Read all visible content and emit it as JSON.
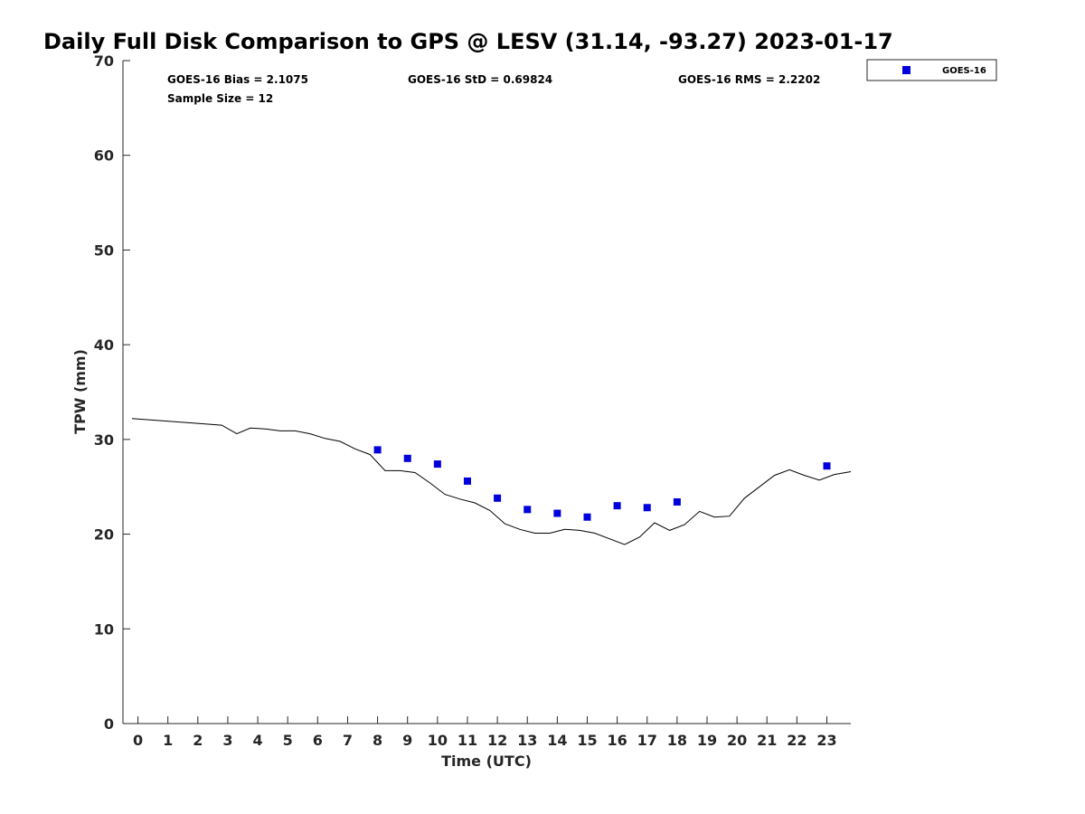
{
  "chart_data": {
    "type": "scatter",
    "title": "Daily Full Disk Comparison to GPS @ LESV (31.14, -93.27) 2023-01-17",
    "xlabel": "Time (UTC)",
    "ylabel": "TPW (mm)",
    "xlim": [
      -0.5,
      23.8
    ],
    "ylim": [
      0,
      70
    ],
    "x_ticks": [
      0,
      1,
      2,
      3,
      4,
      5,
      6,
      7,
      8,
      9,
      10,
      11,
      12,
      13,
      14,
      15,
      16,
      17,
      18,
      19,
      20,
      21,
      22,
      23
    ],
    "y_ticks": [
      0,
      10,
      20,
      30,
      40,
      50,
      60,
      70
    ],
    "grid": false,
    "legend_position": "top-right, outside plot",
    "annotations": {
      "bias": "GOES-16 Bias = 2.1075",
      "std": "GOES-16 StD = 0.69824",
      "rms": "GOES-16 RMS = 2.2202",
      "sample": "Sample Size = 12"
    },
    "series": [
      {
        "name": "GOES-16",
        "marker": "square",
        "color": "#0000dd",
        "points": [
          [
            8.0,
            28.9
          ],
          [
            9.0,
            28.0
          ],
          [
            10.0,
            27.4
          ],
          [
            11.0,
            25.6
          ],
          [
            12.0,
            23.8
          ],
          [
            13.0,
            22.6
          ],
          [
            14.0,
            22.2
          ],
          [
            15.0,
            21.8
          ],
          [
            16.0,
            23.0
          ],
          [
            17.0,
            22.8
          ],
          [
            18.0,
            23.4
          ],
          [
            23.0,
            27.2
          ]
        ]
      },
      {
        "marker": "none",
        "style": "line",
        "color": "#000000",
        "points": [
          [
            -0.2,
            32.2
          ],
          [
            2.8,
            31.5
          ],
          [
            3.3,
            30.6
          ],
          [
            3.75,
            31.2
          ],
          [
            4.25,
            31.1
          ],
          [
            4.75,
            30.9
          ],
          [
            5.25,
            30.9
          ],
          [
            5.75,
            30.6
          ],
          [
            6.25,
            30.1
          ],
          [
            6.75,
            29.8
          ],
          [
            7.25,
            29.0
          ],
          [
            7.75,
            28.4
          ],
          [
            8.25,
            26.7
          ],
          [
            8.75,
            26.7
          ],
          [
            9.25,
            26.5
          ],
          [
            9.75,
            25.4
          ],
          [
            10.25,
            24.2
          ],
          [
            10.75,
            23.7
          ],
          [
            11.25,
            23.3
          ],
          [
            11.75,
            22.5
          ],
          [
            12.25,
            21.1
          ],
          [
            12.75,
            20.5
          ],
          [
            13.25,
            20.1
          ],
          [
            13.75,
            20.1
          ],
          [
            14.25,
            20.5
          ],
          [
            14.75,
            20.4
          ],
          [
            15.25,
            20.1
          ],
          [
            15.75,
            19.5
          ],
          [
            16.25,
            18.9
          ],
          [
            16.75,
            19.7
          ],
          [
            17.25,
            21.2
          ],
          [
            17.75,
            20.4
          ],
          [
            18.25,
            21.0
          ],
          [
            18.75,
            22.4
          ],
          [
            19.25,
            21.8
          ],
          [
            19.75,
            21.9
          ],
          [
            20.25,
            23.8
          ],
          [
            20.75,
            25.0
          ],
          [
            21.25,
            26.2
          ],
          [
            21.75,
            26.8
          ],
          [
            22.25,
            26.2
          ],
          [
            22.75,
            25.7
          ],
          [
            23.25,
            26.3
          ],
          [
            23.8,
            26.6
          ]
        ]
      }
    ]
  }
}
